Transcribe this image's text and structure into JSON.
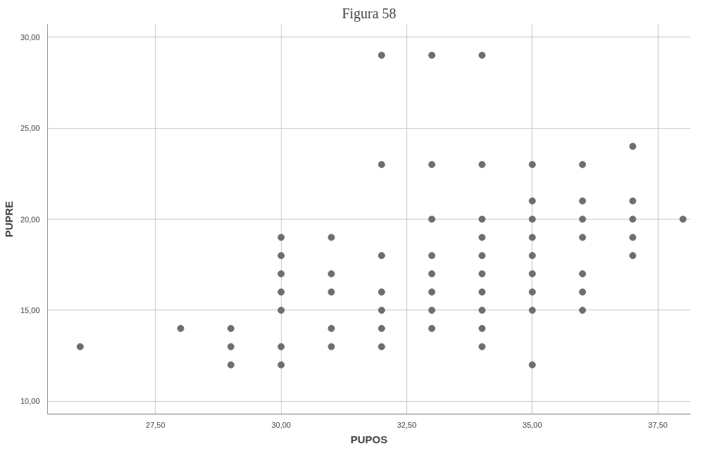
{
  "chart_data": {
    "type": "scatter",
    "title": "Figura 58",
    "xlabel": "PUPOS",
    "ylabel": "PUPRE",
    "xlim": [
      25.35,
      38.15
    ],
    "ylim": [
      9.3,
      30.7
    ],
    "xticks": [
      {
        "value": 27.5,
        "label": "27,50"
      },
      {
        "value": 30,
        "label": "30,00"
      },
      {
        "value": 32.5,
        "label": "32,50"
      },
      {
        "value": 35,
        "label": "35,00"
      },
      {
        "value": 37.5,
        "label": "37,50"
      }
    ],
    "yticks": [
      {
        "value": 10,
        "label": "10,00"
      },
      {
        "value": 15,
        "label": "15,00"
      },
      {
        "value": 20,
        "label": "20,00"
      },
      {
        "value": 25,
        "label": "25,00"
      },
      {
        "value": 30,
        "label": "30,00"
      }
    ],
    "grid": true,
    "marker": "circle",
    "series": [
      {
        "color": "#6e6e6e",
        "x": [
          26,
          28,
          29,
          29,
          29,
          30,
          30,
          30,
          30,
          30,
          30,
          30,
          31,
          31,
          31,
          31,
          31,
          32,
          32,
          32,
          32,
          32,
          32,
          32,
          33,
          33,
          33,
          33,
          33,
          33,
          33,
          33,
          34,
          34,
          34,
          34,
          34,
          34,
          34,
          34,
          34,
          34,
          35,
          35,
          35,
          35,
          35,
          35,
          35,
          35,
          35,
          36,
          36,
          36,
          36,
          36,
          36,
          36,
          37,
          37,
          37,
          37,
          37,
          38
        ],
        "values": [
          13,
          14,
          14,
          13,
          12,
          19,
          18,
          17,
          16,
          15,
          13,
          12,
          19,
          17,
          16,
          14,
          13,
          29,
          23,
          18,
          16,
          15,
          14,
          13,
          29,
          23,
          20,
          18,
          17,
          16,
          15,
          14,
          29,
          23,
          20,
          19,
          18,
          17,
          16,
          15,
          14,
          13,
          23,
          21,
          20,
          19,
          18,
          17,
          16,
          15,
          12,
          23,
          21,
          20,
          19,
          17,
          16,
          15,
          24,
          21,
          20,
          19,
          18,
          20
        ]
      }
    ]
  }
}
